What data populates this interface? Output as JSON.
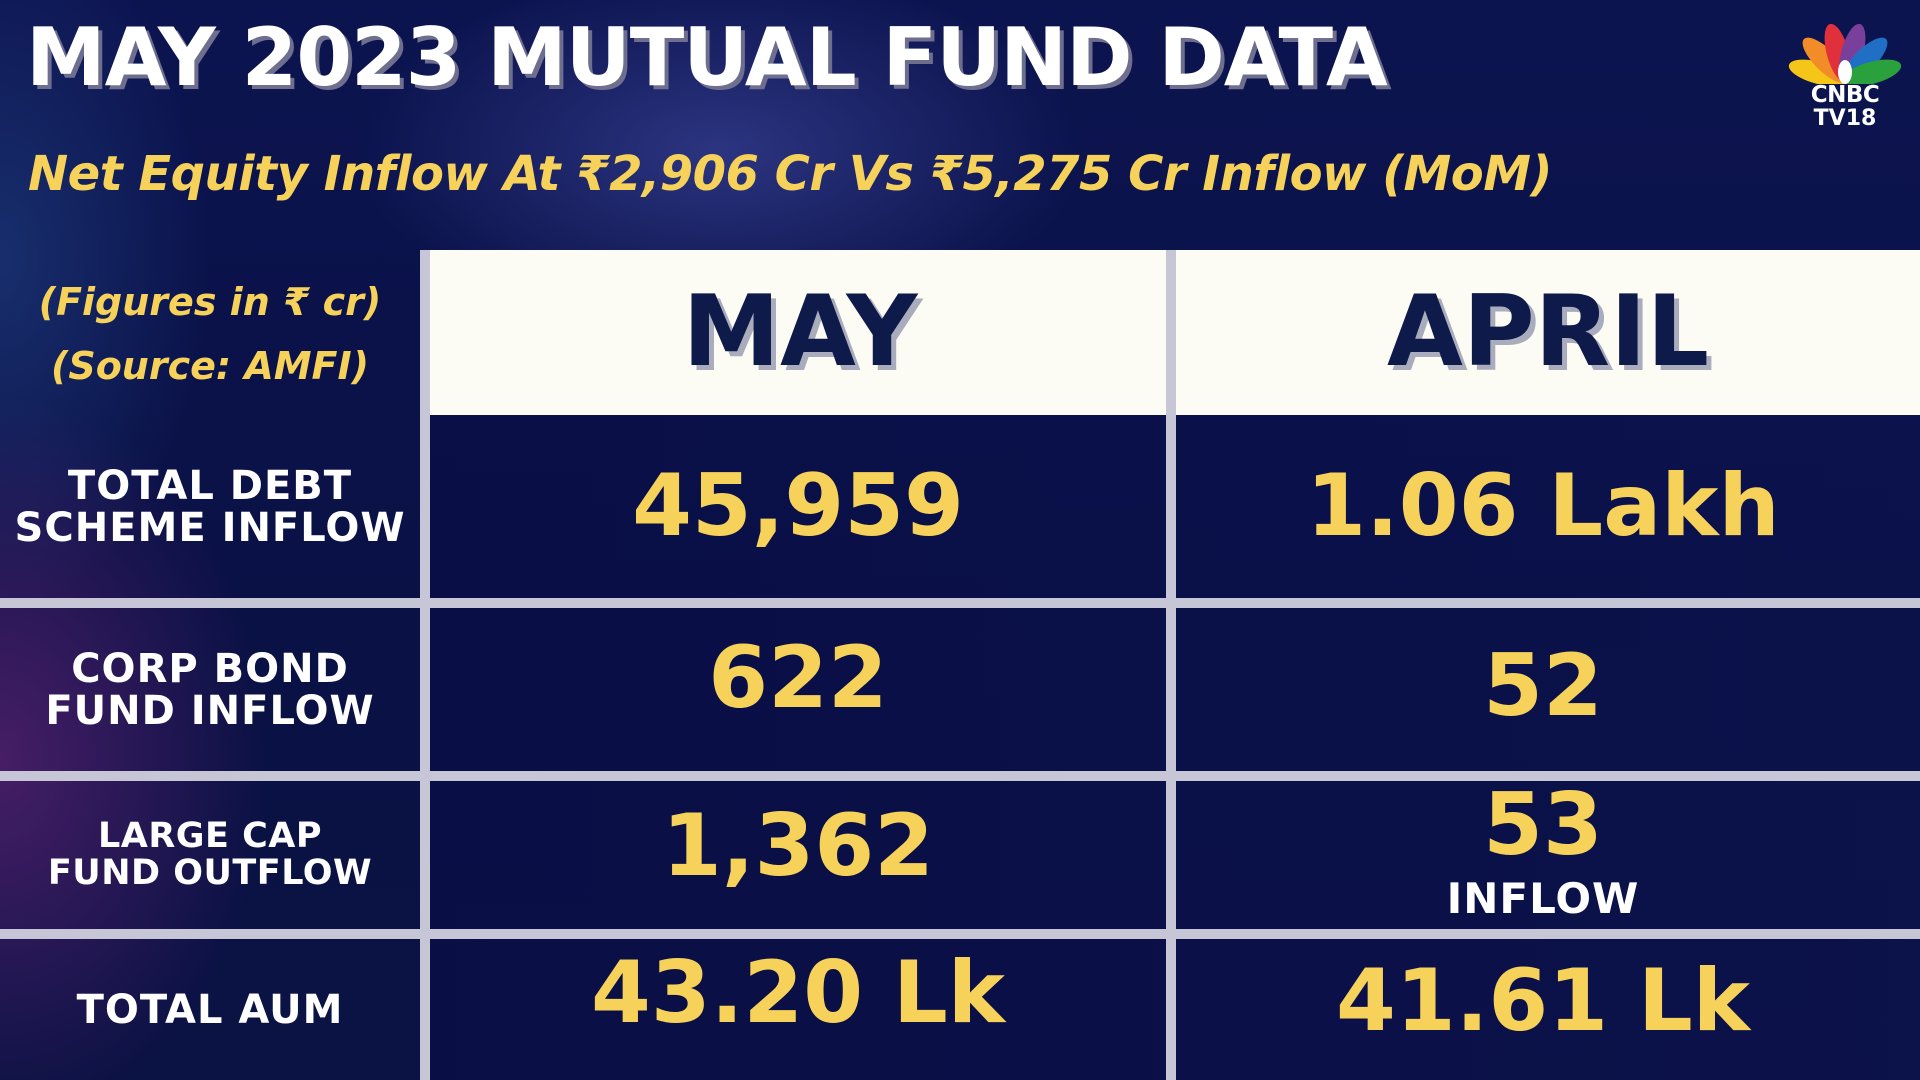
{
  "header": {
    "title": "MAY 2023 MUTUAL FUND DATA",
    "subtitle": "Net Equity Inflow At ₹2,906 Cr Vs ₹5,275 Cr Inflow (MoM)"
  },
  "logo": {
    "line1": "CNBC",
    "line2": "TV18",
    "icon": "peacock-icon",
    "colors": [
      "#f5c518",
      "#f28c28",
      "#e0303b",
      "#7a3f9b",
      "#1f6fc4",
      "#2aa13d"
    ]
  },
  "notes": {
    "figures": "(Figures in ₹ cr)",
    "source": "(Source: AMFI)"
  },
  "table": {
    "columns": [
      "MAY",
      "APRIL"
    ],
    "rows": [
      {
        "label_line1": "TOTAL DEBT",
        "label_line2": "SCHEME INFLOW",
        "may": "45,959",
        "april": "1.06 Lakh"
      },
      {
        "label_line1": "CORP BOND",
        "label_line2": "FUND INFLOW",
        "may": "622",
        "april": "52"
      },
      {
        "label_line1": "LARGE CAP",
        "label_line2": "FUND OUTFLOW",
        "may": "1,362",
        "april": "53",
        "april_note": "INFLOW"
      },
      {
        "label_line1": "TOTAL AUM",
        "may": "43.20 Lk",
        "april": "41.61 Lk"
      }
    ]
  },
  "colors": {
    "background": "#0b1146",
    "accent_yellow": "#f6d25a",
    "header_band": "#fcfcf4",
    "header_text": "#0e1a4a",
    "grid_lines": "#c6c6d6"
  }
}
